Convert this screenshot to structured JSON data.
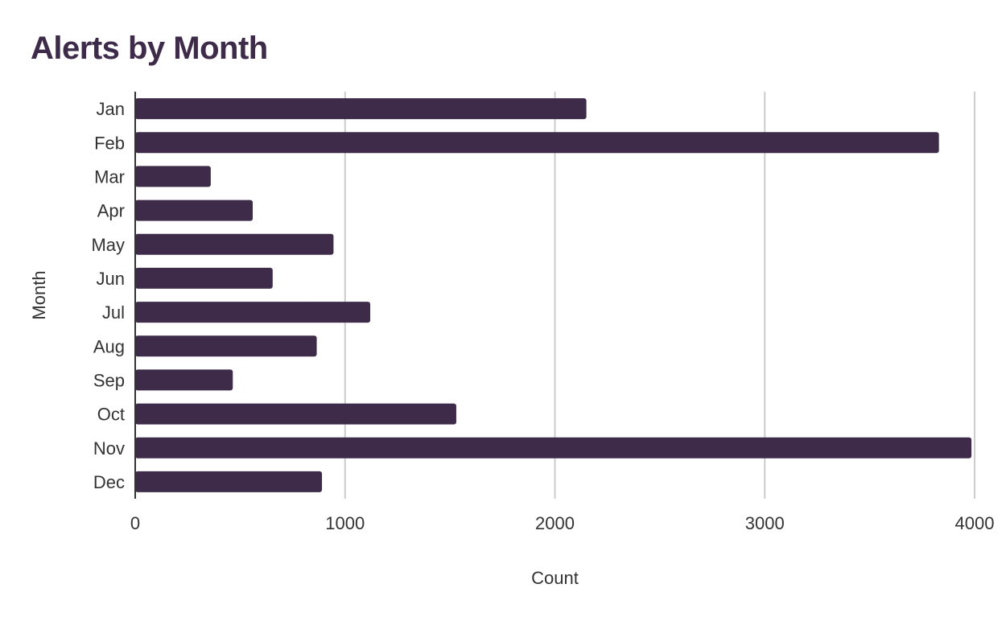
{
  "chart_data": {
    "type": "bar",
    "orientation": "horizontal",
    "title": "Alerts by Month",
    "xlabel": "Count",
    "ylabel": "Month",
    "categories": [
      "Jan",
      "Feb",
      "Mar",
      "Apr",
      "May",
      "Jun",
      "Jul",
      "Aug",
      "Sep",
      "Oct",
      "Nov",
      "Dec"
    ],
    "values": [
      2150,
      3830,
      360,
      560,
      945,
      655,
      1120,
      865,
      465,
      1530,
      3985,
      890
    ],
    "xlim": [
      0,
      4000
    ],
    "xticks": [
      0,
      1000,
      2000,
      3000,
      4000
    ],
    "grid": true,
    "legend": "none",
    "bar_color": "#3d2b49",
    "title_color": "#3d2b49",
    "grid_color": "#cccccc"
  }
}
